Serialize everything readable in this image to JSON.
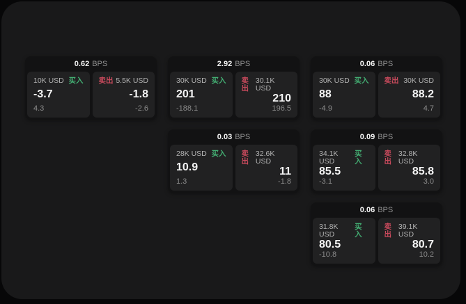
{
  "labels": {
    "bps_unit": "BPS",
    "buy": "买入",
    "sell": "卖出"
  },
  "colors": {
    "background": "#070708",
    "panel": "#19191a",
    "card": "#121213",
    "tile": "#212122",
    "buy": "#43ad72",
    "sell": "#c84a5c"
  },
  "cards": [
    {
      "bps": "0.62",
      "buy": {
        "amount": "10K USD",
        "price": "-3.7",
        "change": "4.3"
      },
      "sell": {
        "amount": "5.5K USD",
        "price": "-1.8",
        "change": "-2.6"
      }
    },
    {
      "bps": "2.92",
      "buy": {
        "amount": "30K USD",
        "price": "201",
        "change": "-188.1"
      },
      "sell": {
        "amount": "30.1K USD",
        "price": "210",
        "change": "196.5"
      }
    },
    {
      "bps": "0.06",
      "buy": {
        "amount": "30K USD",
        "price": "88",
        "change": "-4.9"
      },
      "sell": {
        "amount": "30K USD",
        "price": "88.2",
        "change": "4.7"
      }
    },
    {
      "bps": "0.03",
      "buy": {
        "amount": "28K USD",
        "price": "10.9",
        "change": "1.3"
      },
      "sell": {
        "amount": "32.6K USD",
        "price": "11",
        "change": "-1.8"
      }
    },
    {
      "bps": "0.09",
      "buy": {
        "amount": "34.1K USD",
        "price": "85.5",
        "change": "-3.1"
      },
      "sell": {
        "amount": "32.8K USD",
        "price": "85.8",
        "change": "3.0"
      }
    },
    {
      "bps": "0.06",
      "buy": {
        "amount": "31.8K USD",
        "price": "80.5",
        "change": "-10.8"
      },
      "sell": {
        "amount": "39.1K USD",
        "price": "80.7",
        "change": "10.2"
      }
    }
  ]
}
